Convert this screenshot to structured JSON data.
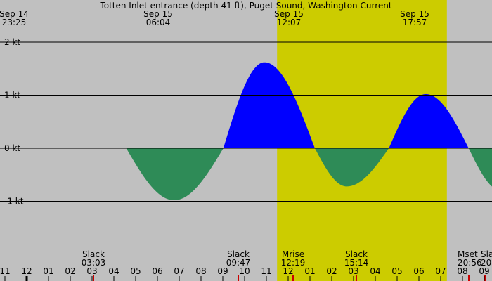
{
  "chart_data": {
    "type": "area",
    "title": "Totten Inlet entrance (depth 41 ft), Puget Sound, Washington Current",
    "unit": "kt",
    "ylim": [
      -1.95,
      2.25
    ],
    "xlim": [
      10.61,
      33.12
    ],
    "y_ticks": [
      {
        "value": 2,
        "label": "2 kt"
      },
      {
        "value": 1,
        "label": "1 kt"
      },
      {
        "value": 0,
        "label": "0 kt"
      },
      {
        "value": -1,
        "label": "-1 kt"
      }
    ],
    "daylight": [
      {
        "start": 7.97,
        "end": 20.45
      }
    ],
    "events_top": [
      {
        "date": "Sep 14",
        "time": "23:25",
        "value": -0.98,
        "x": 23.42
      },
      {
        "date": "Sep 15",
        "time": "06:04",
        "value": 1.62,
        "x": 30.07
      },
      {
        "date": "Sep 15",
        "time": "12:07",
        "value": -0.72,
        "x": 36.12
      },
      {
        "date": "Sep 15",
        "time": "17:57",
        "value": 1.02,
        "x": 41.95
      }
    ],
    "events_bottom": [
      {
        "label": "Slack",
        "time": "03:03",
        "x": 27.05,
        "kind": "slack"
      },
      {
        "label": "Slack",
        "time": "09:47",
        "x": 33.78,
        "kind": "slack"
      },
      {
        "label": "Mrise",
        "time": "12:19",
        "x": 36.32,
        "kind": "moon"
      },
      {
        "label": "Slack",
        "time": "15:14",
        "x": 39.23,
        "kind": "slack"
      },
      {
        "label": "Mset",
        "time": "20:56",
        "x": 44.93,
        "kind": "moon"
      },
      {
        "label": "Sla",
        "time": "20",
        "x": 45.9,
        "kind": "slack"
      }
    ],
    "x_ticks": [
      "11",
      "12",
      "01",
      "02",
      "03",
      "04",
      "05",
      "06",
      "07",
      "08",
      "09",
      "10",
      "11",
      "12",
      "01",
      "02",
      "03",
      "04",
      "05",
      "06",
      "07",
      "08",
      "09"
    ],
    "colors": {
      "background": "#c0c0c0",
      "daylight": "#cccc00",
      "flood": "#0000ff",
      "ebb": "#2e8b57",
      "slack_marker": "#cc0000",
      "moon_marker": "#cc0000"
    }
  }
}
